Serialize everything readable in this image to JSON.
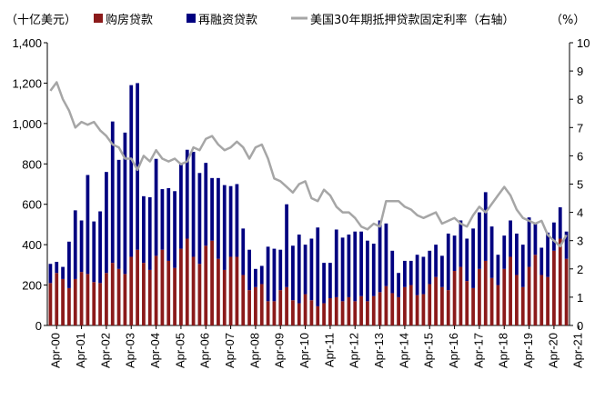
{
  "chart_data": {
    "type": "bar",
    "left_unit": "（十亿美元）",
    "right_unit": "（%）",
    "legend": [
      {
        "name": "购房贷款",
        "color": "#8b1a1a",
        "kind": "bar"
      },
      {
        "name": "再融资贷款",
        "color": "#000080",
        "kind": "bar"
      },
      {
        "name": "美国30年期抵押贷款固定利率（右轴）",
        "color": "#a6a6a6",
        "kind": "line"
      }
    ],
    "y_left": {
      "min": 0,
      "max": 1400,
      "ticks": [
        "0",
        "200",
        "400",
        "600",
        "800",
        "1,000",
        "1,200",
        "1,400"
      ]
    },
    "y_right": {
      "min": 0,
      "max": 10,
      "ticks": [
        "0",
        "1",
        "2",
        "3",
        "4",
        "5",
        "6",
        "7",
        "8",
        "9",
        "10"
      ]
    },
    "x_ticks": [
      "Apr-00",
      "Apr-01",
      "Apr-02",
      "Apr-03",
      "Apr-04",
      "Apr-05",
      "Apr-06",
      "Apr-07",
      "Apr-08",
      "Apr-09",
      "Apr-10",
      "Apr-11",
      "Apr-12",
      "Apr-13",
      "Apr-14",
      "Apr-15",
      "Apr-16",
      "Apr-17",
      "Apr-18",
      "Apr-19",
      "Apr-20",
      "Apr-21"
    ],
    "quarters_start": "2000Q1",
    "purchase": [
      210,
      260,
      230,
      185,
      230,
      265,
      255,
      215,
      210,
      260,
      310,
      280,
      255,
      340,
      375,
      310,
      275,
      345,
      375,
      320,
      285,
      380,
      430,
      340,
      305,
      395,
      420,
      330,
      275,
      340,
      340,
      250,
      175,
      190,
      205,
      120,
      120,
      175,
      190,
      125,
      110,
      155,
      125,
      95,
      110,
      135,
      140,
      120,
      140,
      120,
      145,
      120,
      145,
      165,
      195,
      160,
      140,
      190,
      200,
      150,
      155,
      205,
      240,
      190,
      175,
      270,
      290,
      220,
      185,
      280,
      320,
      235,
      200,
      280,
      340,
      250,
      190,
      290,
      350,
      250,
      240,
      370,
      430,
      330
    ],
    "refinance": [
      95,
      55,
      60,
      230,
      340,
      255,
      490,
      300,
      355,
      500,
      700,
      540,
      700,
      850,
      825,
      330,
      360,
      480,
      300,
      360,
      380,
      420,
      440,
      520,
      450,
      410,
      310,
      400,
      420,
      350,
      360,
      230,
      200,
      90,
      90,
      270,
      260,
      200,
      410,
      270,
      340,
      245,
      305,
      390,
      200,
      175,
      335,
      315,
      310,
      345,
      320,
      300,
      260,
      355,
      310,
      210,
      120,
      130,
      120,
      200,
      185,
      165,
      160,
      155,
      280,
      175,
      230,
      210,
      295,
      280,
      340,
      255,
      150,
      165,
      180,
      205,
      210,
      245,
      155,
      135,
      220,
      140,
      155,
      135
    ],
    "rate": [
      8.3,
      8.6,
      8.0,
      7.6,
      7.0,
      7.2,
      7.1,
      7.2,
      6.9,
      6.7,
      6.4,
      6.3,
      5.9,
      5.9,
      5.5,
      6.0,
      5.8,
      6.2,
      5.9,
      5.8,
      5.9,
      5.7,
      5.8,
      6.3,
      6.2,
      6.6,
      6.7,
      6.4,
      6.2,
      6.3,
      6.5,
      6.3,
      5.9,
      6.3,
      6.4,
      5.9,
      5.2,
      5.1,
      4.9,
      4.7,
      5.0,
      5.1,
      4.5,
      4.4,
      4.8,
      4.6,
      4.2,
      4.0,
      4.0,
      3.8,
      3.5,
      3.4,
      3.6,
      3.5,
      4.4,
      4.4,
      4.4,
      4.2,
      4.1,
      3.9,
      3.8,
      3.9,
      4.0,
      3.6,
      3.7,
      3.8,
      3.6,
      3.5,
      3.9,
      4.2,
      4.0,
      4.3,
      4.6,
      4.9,
      4.6,
      4.1,
      3.8,
      3.7,
      3.6,
      3.7,
      3.2,
      3.0,
      2.8,
      3.2
    ]
  }
}
